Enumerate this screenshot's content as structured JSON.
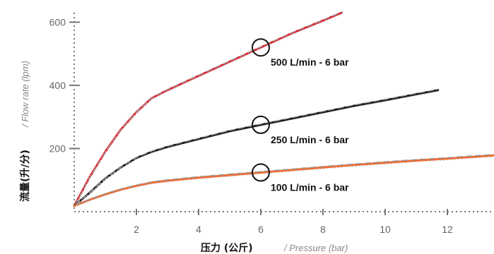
{
  "chart_data": {
    "type": "line",
    "xlabel": "压力 (公斤)",
    "xlabel_sub": "/ Pressure (bar)",
    "ylabel": "流量(升/分)",
    "ylabel_sub": "/ Flow rate (lpm)",
    "xlim": [
      0,
      13.5
    ],
    "ylim": [
      0,
      630
    ],
    "x_ticks": [
      2,
      4,
      6,
      8,
      10,
      12
    ],
    "y_ticks": [
      200,
      400,
      600
    ],
    "grid": false,
    "series": [
      {
        "color": "#e0202a",
        "x": [
          0.0,
          0.5,
          1.0,
          1.5,
          2.0,
          2.5,
          3.0,
          4.0,
          5.0,
          6.0,
          7.0,
          8.0,
          8.6
        ],
        "y": [
          18,
          110,
          190,
          260,
          315,
          360,
          385,
          430,
          475,
          520,
          565,
          605,
          630
        ]
      },
      {
        "color": "#1a1a1a",
        "x": [
          0.0,
          0.5,
          1.0,
          1.5,
          2.0,
          2.5,
          3.0,
          4.0,
          5.0,
          6.0,
          7.0,
          8.0,
          9.0,
          10.0,
          11.0,
          11.7
        ],
        "y": [
          18,
          60,
          105,
          140,
          170,
          190,
          205,
          230,
          255,
          275,
          295,
          315,
          335,
          353,
          372,
          385
        ]
      },
      {
        "color": "#f06a30",
        "x": [
          0.0,
          0.5,
          1.0,
          1.5,
          2.0,
          2.5,
          3.0,
          4.0,
          5.0,
          6.0,
          7.0,
          8.0,
          9.0,
          10.0,
          11.0,
          12.0,
          13.0,
          13.5
        ],
        "y": [
          18,
          38,
          55,
          70,
          82,
          92,
          98,
          108,
          116,
          124,
          132,
          140,
          148,
          155,
          162,
          168,
          175,
          178
        ]
      }
    ],
    "annotations": [
      {
        "label": "500 L/min - 6 bar",
        "x": 6,
        "y": 520
      },
      {
        "label": "250 L/min - 6 bar",
        "x": 6,
        "y": 275
      },
      {
        "label": "100 L/min - 6 bar",
        "x": 6,
        "y": 124
      }
    ]
  }
}
